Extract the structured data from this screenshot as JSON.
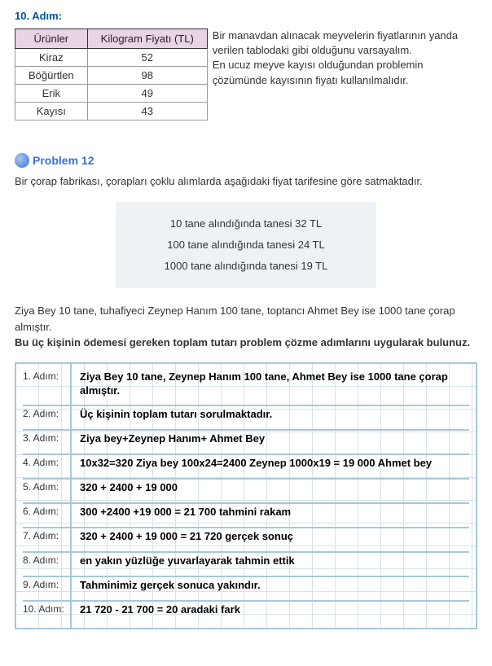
{
  "top_step_label": "10. Adım:",
  "table": {
    "headers": [
      "Ürünler",
      "Kilogram Fiyatı (TL)"
    ],
    "rows": [
      [
        "Kiraz",
        "52"
      ],
      [
        "Böğürtlen",
        "98"
      ],
      [
        "Erik",
        "49"
      ],
      [
        "Kayısı",
        "43"
      ]
    ]
  },
  "side_text_1": "Bir manavdan alınacak meyvelerin fiyatlarının yanda verilen tablodaki gibi olduğunu varsayalım.",
  "side_text_2": "En ucuz meyve kayısı olduğundan problemin çözümünde kayısının fiyatı kullanılmalıdır.",
  "problem_label": "Problem 12",
  "intro": "Bir çorap fabrikası, çorapları çoklu alımlarda aşağıdaki fiyat tarifesine göre satmaktadır.",
  "tariff": [
    "10 tane alındığında tanesi 32 TL",
    "100 tane alındığında tanesi 24 TL",
    "1000 tane alındığında tanesi 19 TL"
  ],
  "question_1": "Ziya Bey 10 tane, tuhafiyeci Zeynep Hanım 100 tane, toptancı Ahmet Bey ise 1000 tane çorap almıştır.",
  "question_2": "Bu üç kişinin ödemesi gereken toplam tutarı problem çözme adımlarını uygularak bulunuz.",
  "steps": [
    {
      "num": "1. Adım:",
      "text": "Ziya Bey 10 tane, Zeynep Hanım 100 tane, Ahmet Bey ise 1000 tane çorap almıştır.",
      "tall": true
    },
    {
      "num": "2. Adım:",
      "text": "Üç kişinin toplam tutarı sorulmaktadır.",
      "tall": false
    },
    {
      "num": "3. Adım:",
      "text": "Ziya bey+Zeynep Hanım+ Ahmet Bey",
      "tall": false
    },
    {
      "num": "4. Adım:",
      "text": "10x32=320 Ziya bey 100x24=2400 Zeynep 1000x19 = 19 000 Ahmet bey",
      "tall": false
    },
    {
      "num": "5. Adım:",
      "text": "320 + 2400 + 19 000",
      "tall": false
    },
    {
      "num": "6. Adım:",
      "text": "300 +2400 +19 000 = 21 700 tahmini rakam",
      "tall": false
    },
    {
      "num": "7. Adım:",
      "text": "320 + 2400 + 19 000 = 21 720 gerçek sonuç",
      "tall": false
    },
    {
      "num": "8. Adım:",
      "text": "en yakın yüzlüğe yuvarlayarak tahmin ettik",
      "tall": false
    },
    {
      "num": "9. Adım:",
      "text": "Tahminimiz gerçek sonuca yakındır.",
      "tall": false
    },
    {
      "num": "10. Adım:",
      "text": "21 720 - 21 700 = 20 aradaki fark",
      "tall": false
    }
  ]
}
